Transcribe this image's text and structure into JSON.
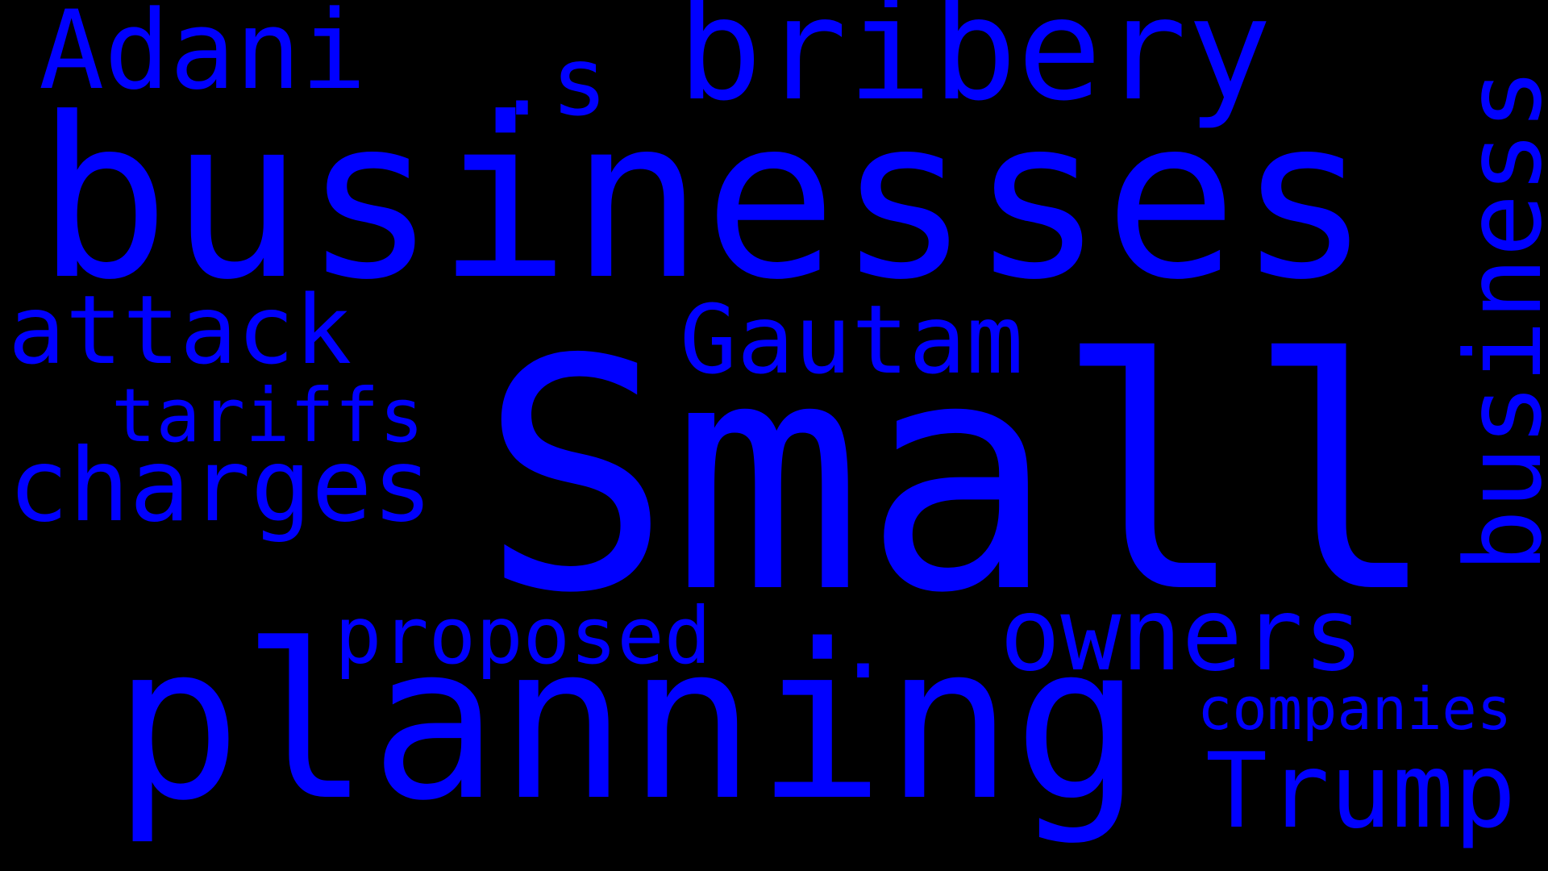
{
  "cloud": {
    "background": "#000000",
    "word_color": "#0000ff",
    "words": {
      "small": "Small",
      "businesses": "businesses",
      "planning": "planning",
      "bribery": "bribery",
      "adani": "Adani",
      "s": ".s",
      "attack": "attack",
      "gautam": "Gautam",
      "tariffs": "tariffs",
      "charges": "charges",
      "proposed": "proposed",
      "dot": ".",
      "owners": "owners",
      "companies": "companies",
      "trump": "Trump",
      "business": "business"
    }
  }
}
